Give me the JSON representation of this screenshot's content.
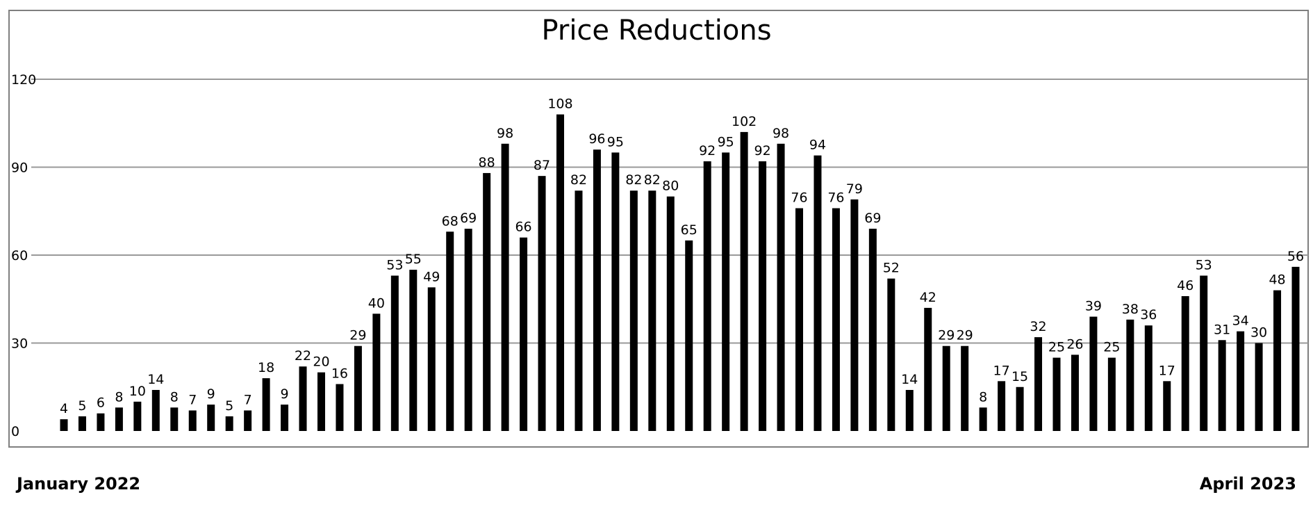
{
  "chart_data": {
    "type": "bar",
    "title": "Price Reductions",
    "xlabel": "",
    "ylabel": "",
    "ylim": [
      0,
      120
    ],
    "yticks": [
      0,
      30,
      60,
      90,
      120
    ],
    "grid": true,
    "bar_color": "#000000",
    "grid_color": "#999999",
    "values": [
      4,
      5,
      6,
      8,
      10,
      14,
      8,
      7,
      9,
      5,
      7,
      18,
      9,
      22,
      20,
      16,
      29,
      40,
      53,
      55,
      49,
      68,
      69,
      88,
      98,
      66,
      87,
      108,
      82,
      96,
      95,
      82,
      82,
      80,
      65,
      92,
      95,
      102,
      92,
      98,
      76,
      94,
      76,
      79,
      69,
      52,
      14,
      42,
      29,
      29,
      8,
      17,
      15,
      32,
      25,
      26,
      39,
      25,
      38,
      36,
      17,
      46,
      53,
      31,
      34,
      30,
      48,
      56
    ],
    "start_label": "January 2022",
    "end_label": "April 2023"
  }
}
